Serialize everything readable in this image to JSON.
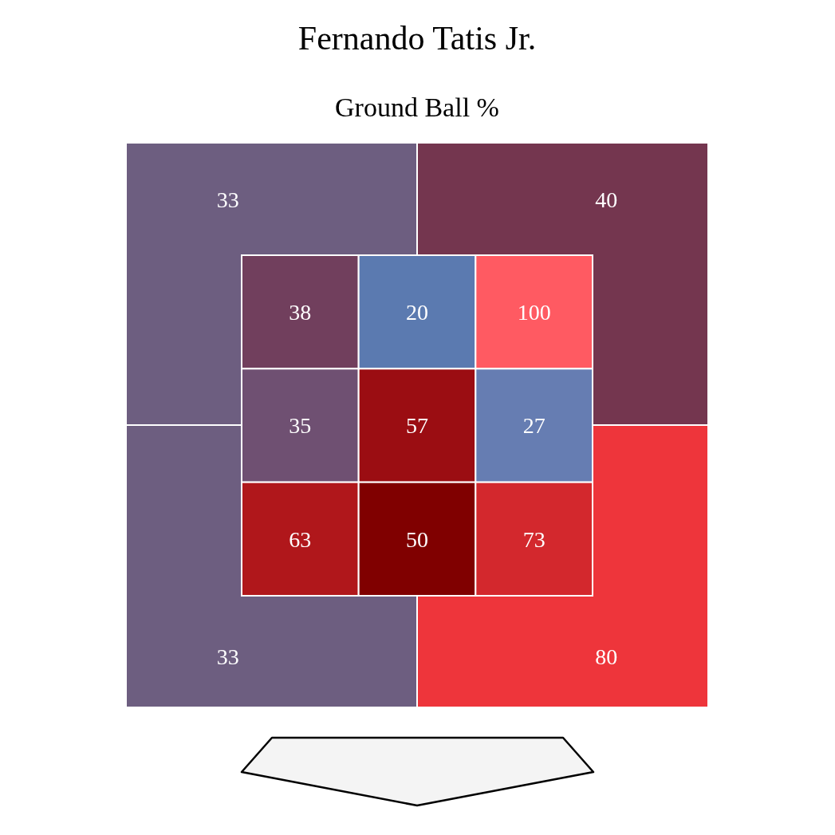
{
  "chart_data": [
    {
      "type": "heatmap",
      "title": "Fernando Tatis Jr.",
      "subtitle": "Ground Ball %",
      "categories": [
        null,
        null
      ],
      "y_categories": [
        null,
        null
      ],
      "cells": [
        [
          33,
          40
        ],
        [
          33,
          80
        ]
      ],
      "colors": [
        "#6d5e80",
        "#74364f",
        "#6d5e80",
        "#ee353b"
      ],
      "data_labels": true
    },
    {
      "type": "heatmap",
      "categories": [
        null,
        null,
        null
      ],
      "y_categories": [
        null,
        null,
        null
      ],
      "cells": [
        [
          38,
          20,
          100
        ],
        [
          35,
          57,
          27
        ],
        [
          63,
          50,
          73
        ]
      ],
      "colors": [
        "#713f5d",
        "#5b7ab0",
        "#ff5a62",
        "#6f5072",
        "#9b0d12",
        "#667db2",
        "#b0171b",
        "#800000",
        "#d3282d"
      ],
      "data_labels": true
    }
  ]
}
